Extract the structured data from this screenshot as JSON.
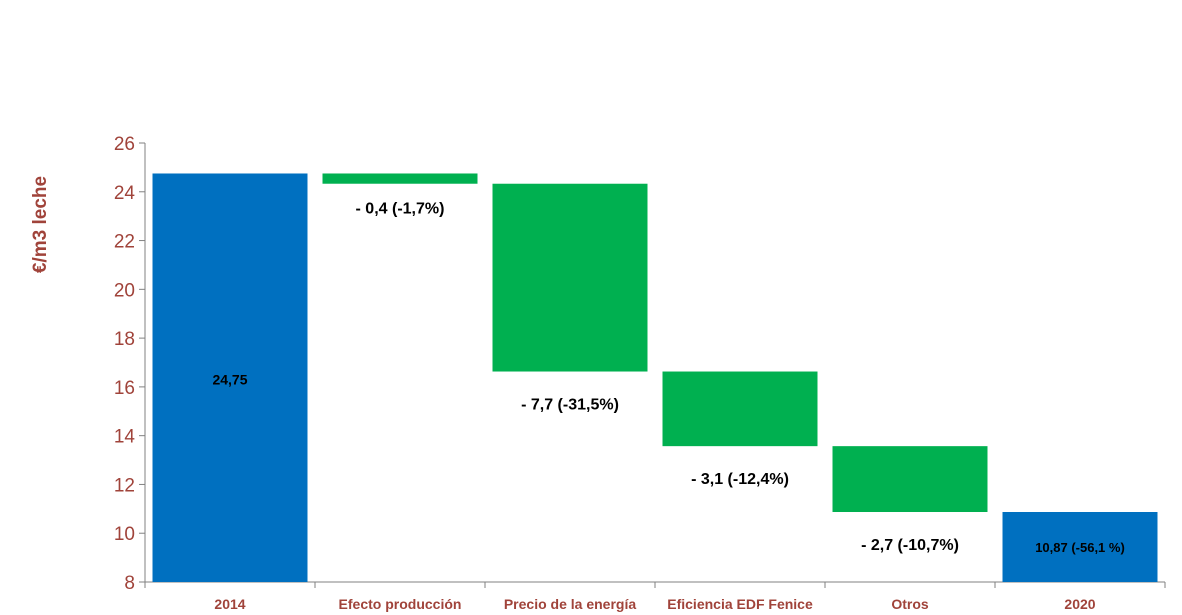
{
  "chart_data": {
    "type": "bar",
    "subtype": "waterfall",
    "title": "",
    "xlabel": "",
    "ylabel": "€/m3 leche",
    "ylim": [
      8,
      26
    ],
    "yticks": [
      8,
      10,
      12,
      14,
      16,
      18,
      20,
      22,
      24,
      26
    ],
    "grid": false,
    "categories": [
      "2014",
      "Efecto producción",
      "Precio de la energía",
      "Eficiencia EDF Fenice",
      "Otros",
      "2020"
    ],
    "bars": [
      {
        "category": "2014",
        "kind": "total",
        "start": 8,
        "end": 24.75,
        "label": "24,75",
        "label_position": "inside"
      },
      {
        "category": "Efecto producción",
        "kind": "decrease",
        "start": 24.75,
        "end": 24.33,
        "value": -0.4,
        "label": "- 0,4 (-1,7%)",
        "label_position": "below"
      },
      {
        "category": "Precio de la energía",
        "kind": "decrease",
        "start": 24.33,
        "end": 16.63,
        "value": -7.7,
        "label": "- 7,7 (-31,5%)",
        "label_position": "below"
      },
      {
        "category": "Eficiencia EDF Fenice",
        "kind": "decrease",
        "start": 16.63,
        "end": 13.57,
        "value": -3.1,
        "label": "- 3,1 (-12,4%)",
        "label_position": "below"
      },
      {
        "category": "Otros",
        "kind": "decrease",
        "start": 13.57,
        "end": 10.87,
        "value": -2.7,
        "label": "- 2,7 (-10,7%)",
        "label_position": "below"
      },
      {
        "category": "2020",
        "kind": "total",
        "start": 8,
        "end": 10.87,
        "label": "10,87 (-56,1 %)",
        "label_position": "inside"
      }
    ],
    "colors": {
      "total": "#0070c0",
      "decrease": "#00b050",
      "axis_text": "#a0433a",
      "axis_line": "#808080"
    }
  }
}
